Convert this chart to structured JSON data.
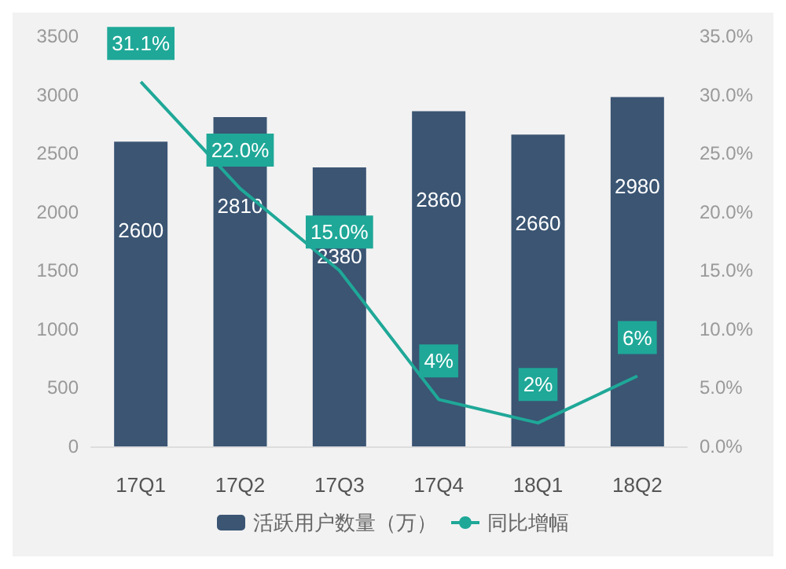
{
  "chart_data": {
    "type": "bar",
    "categories": [
      "17Q1",
      "17Q2",
      "17Q3",
      "17Q4",
      "18Q1",
      "18Q2"
    ],
    "series": [
      {
        "name": "活跃用户数量（万）",
        "color": "#3b5573",
        "values": [
          2600,
          2810,
          2380,
          2860,
          2660,
          2980
        ],
        "value_labels": [
          "2600",
          "2810",
          "2380",
          "2860",
          "2660",
          "2980"
        ]
      },
      {
        "name": "同比增幅",
        "type": "line",
        "axis": "y2",
        "color": "#1fa898",
        "values": [
          31.1,
          22.0,
          15.0,
          4,
          2,
          6
        ],
        "value_labels": [
          "31.1%",
          "22.0%",
          "15.0%",
          "4%",
          "2%",
          "6%"
        ]
      }
    ],
    "ylim": [
      0,
      3500
    ],
    "yticks": [
      0,
      500,
      1000,
      1500,
      2000,
      2500,
      3000,
      3500
    ],
    "y2lim": [
      0,
      35
    ],
    "y2ticks": [
      {
        "value": 0,
        "label": "0.0%"
      },
      {
        "value": 5,
        "label": "5.0%"
      },
      {
        "value": 10,
        "label": "10.0%"
      },
      {
        "value": 15,
        "label": "15.0%"
      },
      {
        "value": 20,
        "label": "20.0%"
      },
      {
        "value": 25,
        "label": "25.0%"
      },
      {
        "value": 30,
        "label": "30.0%"
      },
      {
        "value": 35,
        "label": "35.0%"
      }
    ],
    "grid": false,
    "legend": "bottom",
    "marker": "none",
    "line_style": "solid"
  }
}
